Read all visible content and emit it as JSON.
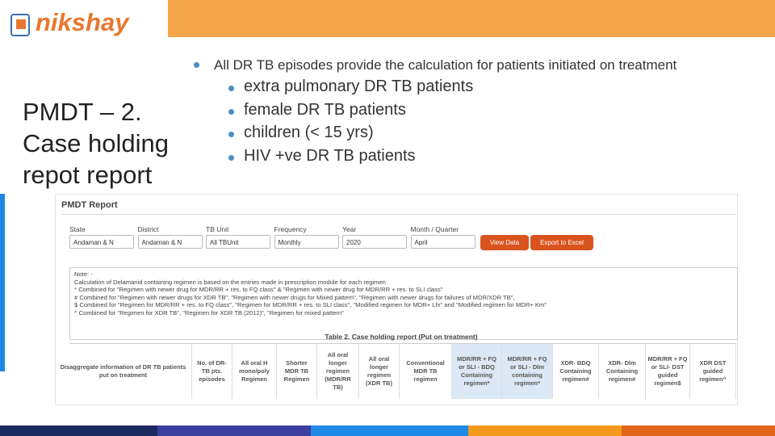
{
  "logo": "nikshay",
  "title": [
    "PMDT – 2.",
    "Case holding",
    "repot report"
  ],
  "bullets": {
    "main": "All DR TB episodes provide the calculation for patients initiated on treatment",
    "sub": [
      "extra pulmonary DR TB patients",
      "female DR TB patients",
      "children (< 15 yrs)",
      "HIV +ve DR TB patients"
    ]
  },
  "report": {
    "title": "PMDT Report",
    "filters": [
      {
        "label": "State",
        "value": "Andaman & N"
      },
      {
        "label": "District",
        "value": "Andaman & N"
      },
      {
        "label": "TB Unit",
        "value": "All TBUnit"
      },
      {
        "label": "Frequency",
        "value": "Monthly"
      },
      {
        "label": "Year",
        "value": "2020"
      },
      {
        "label": "Month / Quarter",
        "value": "April"
      }
    ],
    "buttons": [
      "View Data",
      "Export to Excel"
    ],
    "note_lines": [
      "Note: -",
      "Calculation of Delamanid containing regimen is based on the entries made in prescription module for each regimen",
      "* Combined for \"Regimen with newer drug for MDR/RR + res. to FQ class\" & \"Regimen with newer drug for MDR/RR + res. to SLI class\"",
      "# Combined for \"Regimen with newer drugs for XDR TB\", \"Regimen with newer drugs for Mixed pattern\", \"Regimen with newer drugs for failures of MDR/XDR TB\",",
      "$ Combined for \"Regimen for MDR/RR + res. to FQ class\", \"Regimen for MDR/RR + res. to SLI class\", \"Modified regimen for MDR+ Lfx\" and \"Modified regimen for MDR+ Km\"",
      "^ Combined for \"Regimen for XDR TB\", \"Regimen for XDR TB (2012)\", \"Regimen for mixed pattern\""
    ],
    "table_title": "Table 2. Case holding report (Put on treatment)",
    "table_headers": [
      "Disaggregate information of DR TB patients put on treatment",
      "No. of DR-TB pts. episodes",
      "All oral H mono/poly Regimen",
      "Shorter MDR TB Regimen",
      "All oral longer regimen (MDR/RR TB)",
      "All oral longer regimen (XDR TB)",
      "Conventional MDR TB regimen",
      "MDR/RR + FQ or SLI - BDQ Containing regimen*",
      "MDR/RR + FQ or SLI - Dlm containing regimen*",
      "XDR- BDQ Containing regimen#",
      "XDR- Dlm Containing regimen#",
      "MDR/RR + FQ or SLI- DST guided regimen$",
      "XDR DST guided regimen^"
    ]
  }
}
